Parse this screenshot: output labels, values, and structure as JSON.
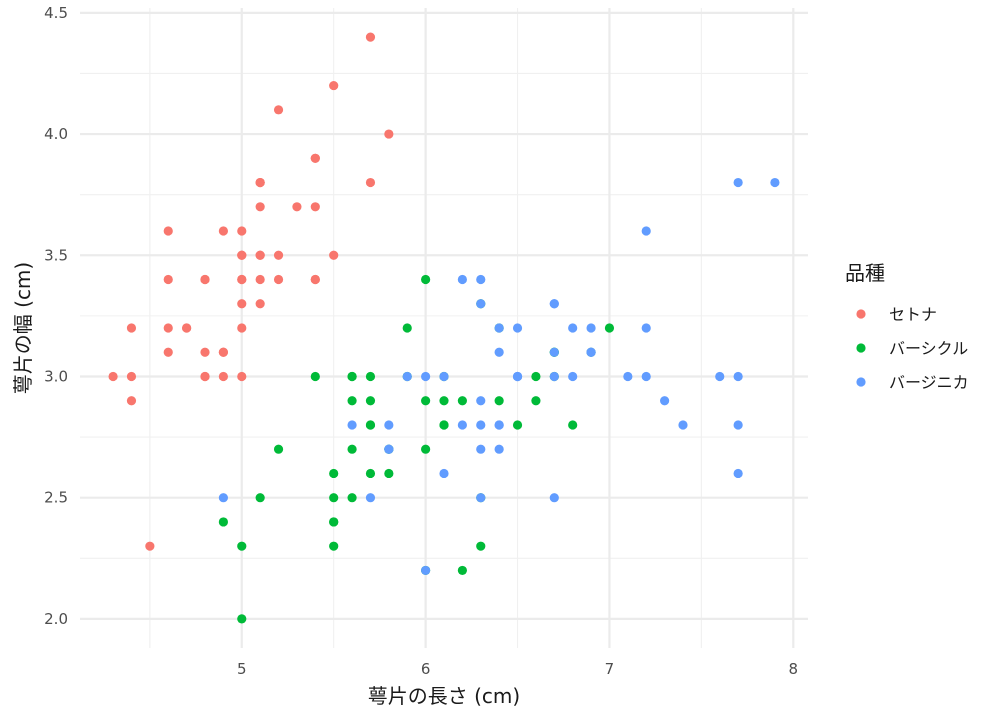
{
  "chart_data": {
    "type": "scatter",
    "title": "",
    "xlabel": "萼片の長さ (cm)",
    "ylabel": "萼片の幅 (cm)",
    "xlim": [
      4.12,
      8.08
    ],
    "ylim": [
      1.88,
      4.52
    ],
    "x_ticks": [
      "5",
      "6",
      "7",
      "8"
    ],
    "y_ticks": [
      "2.0",
      "2.5",
      "3.0",
      "3.5",
      "4.0",
      "4.5"
    ],
    "grid": true,
    "legend": {
      "title": "品種",
      "placement": "right"
    },
    "series": [
      {
        "name": "セトナ",
        "color": "#F8766D",
        "points": [
          [
            5.1,
            3.5
          ],
          [
            4.9,
            3.0
          ],
          [
            4.7,
            3.2
          ],
          [
            4.6,
            3.1
          ],
          [
            5.0,
            3.6
          ],
          [
            5.4,
            3.9
          ],
          [
            4.6,
            3.4
          ],
          [
            5.0,
            3.4
          ],
          [
            4.4,
            2.9
          ],
          [
            4.9,
            3.1
          ],
          [
            5.4,
            3.7
          ],
          [
            4.8,
            3.4
          ],
          [
            4.8,
            3.0
          ],
          [
            4.3,
            3.0
          ],
          [
            5.8,
            4.0
          ],
          [
            5.7,
            4.4
          ],
          [
            5.4,
            3.9
          ],
          [
            5.1,
            3.5
          ],
          [
            5.7,
            3.8
          ],
          [
            5.1,
            3.8
          ],
          [
            5.4,
            3.4
          ],
          [
            5.1,
            3.7
          ],
          [
            4.6,
            3.6
          ],
          [
            5.1,
            3.3
          ],
          [
            4.8,
            3.4
          ],
          [
            5.0,
            3.0
          ],
          [
            5.0,
            3.4
          ],
          [
            5.2,
            3.5
          ],
          [
            5.2,
            3.4
          ],
          [
            4.7,
            3.2
          ],
          [
            4.8,
            3.1
          ],
          [
            5.4,
            3.4
          ],
          [
            5.2,
            4.1
          ],
          [
            5.5,
            4.2
          ],
          [
            4.9,
            3.1
          ],
          [
            5.0,
            3.2
          ],
          [
            5.5,
            3.5
          ],
          [
            4.9,
            3.6
          ],
          [
            4.4,
            3.0
          ],
          [
            5.1,
            3.4
          ],
          [
            5.0,
            3.5
          ],
          [
            4.5,
            2.3
          ],
          [
            4.4,
            3.2
          ],
          [
            5.0,
            3.5
          ],
          [
            5.1,
            3.8
          ],
          [
            4.8,
            3.0
          ],
          [
            5.1,
            3.8
          ],
          [
            4.6,
            3.2
          ],
          [
            5.3,
            3.7
          ],
          [
            5.0,
            3.3
          ]
        ]
      },
      {
        "name": "バーシクル",
        "color": "#00BA38",
        "points": [
          [
            7.0,
            3.2
          ],
          [
            6.4,
            3.2
          ],
          [
            6.9,
            3.1
          ],
          [
            5.5,
            2.3
          ],
          [
            6.5,
            2.8
          ],
          [
            5.7,
            2.8
          ],
          [
            6.3,
            3.3
          ],
          [
            4.9,
            2.4
          ],
          [
            6.6,
            2.9
          ],
          [
            5.2,
            2.7
          ],
          [
            5.0,
            2.0
          ],
          [
            5.9,
            3.0
          ],
          [
            6.0,
            2.2
          ],
          [
            6.1,
            2.9
          ],
          [
            5.6,
            2.9
          ],
          [
            6.7,
            3.1
          ],
          [
            5.6,
            3.0
          ],
          [
            5.8,
            2.7
          ],
          [
            6.2,
            2.2
          ],
          [
            5.6,
            2.5
          ],
          [
            5.9,
            3.2
          ],
          [
            6.1,
            2.8
          ],
          [
            6.3,
            2.5
          ],
          [
            6.1,
            2.8
          ],
          [
            6.4,
            2.9
          ],
          [
            6.6,
            3.0
          ],
          [
            6.8,
            2.8
          ],
          [
            6.7,
            3.0
          ],
          [
            6.0,
            2.9
          ],
          [
            5.7,
            2.6
          ],
          [
            5.5,
            2.4
          ],
          [
            5.5,
            2.4
          ],
          [
            5.8,
            2.7
          ],
          [
            6.0,
            2.7
          ],
          [
            5.4,
            3.0
          ],
          [
            6.0,
            3.4
          ],
          [
            6.7,
            3.1
          ],
          [
            6.3,
            2.3
          ],
          [
            5.6,
            3.0
          ],
          [
            5.5,
            2.5
          ],
          [
            5.5,
            2.6
          ],
          [
            6.1,
            3.0
          ],
          [
            5.8,
            2.6
          ],
          [
            5.0,
            2.3
          ],
          [
            5.6,
            2.7
          ],
          [
            5.7,
            3.0
          ],
          [
            5.7,
            2.9
          ],
          [
            6.2,
            2.9
          ],
          [
            5.1,
            2.5
          ],
          [
            5.7,
            2.8
          ]
        ]
      },
      {
        "name": "バージニカ",
        "color": "#619CFF",
        "points": [
          [
            6.3,
            3.3
          ],
          [
            5.8,
            2.7
          ],
          [
            7.1,
            3.0
          ],
          [
            6.3,
            2.9
          ],
          [
            6.5,
            3.0
          ],
          [
            7.6,
            3.0
          ],
          [
            4.9,
            2.5
          ],
          [
            7.3,
            2.9
          ],
          [
            6.7,
            2.5
          ],
          [
            7.2,
            3.6
          ],
          [
            6.5,
            3.2
          ],
          [
            6.4,
            2.7
          ],
          [
            6.8,
            3.0
          ],
          [
            5.7,
            2.5
          ],
          [
            5.8,
            2.8
          ],
          [
            6.4,
            3.2
          ],
          [
            6.5,
            3.0
          ],
          [
            7.7,
            3.8
          ],
          [
            7.7,
            2.6
          ],
          [
            6.0,
            2.2
          ],
          [
            6.9,
            3.2
          ],
          [
            5.6,
            2.8
          ],
          [
            7.7,
            2.8
          ],
          [
            6.3,
            2.7
          ],
          [
            6.7,
            3.3
          ],
          [
            7.2,
            3.2
          ],
          [
            6.2,
            2.8
          ],
          [
            6.1,
            3.0
          ],
          [
            6.4,
            2.8
          ],
          [
            7.2,
            3.0
          ],
          [
            7.4,
            2.8
          ],
          [
            7.9,
            3.8
          ],
          [
            6.4,
            2.8
          ],
          [
            6.3,
            2.8
          ],
          [
            6.1,
            2.6
          ],
          [
            7.7,
            3.0
          ],
          [
            6.3,
            3.4
          ],
          [
            6.4,
            3.1
          ],
          [
            6.0,
            3.0
          ],
          [
            6.9,
            3.1
          ],
          [
            6.7,
            3.1
          ],
          [
            6.9,
            3.1
          ],
          [
            5.8,
            2.7
          ],
          [
            6.8,
            3.2
          ],
          [
            6.7,
            3.3
          ],
          [
            6.7,
            3.0
          ],
          [
            6.3,
            2.5
          ],
          [
            6.5,
            3.0
          ],
          [
            6.2,
            3.4
          ],
          [
            5.9,
            3.0
          ]
        ]
      }
    ]
  }
}
